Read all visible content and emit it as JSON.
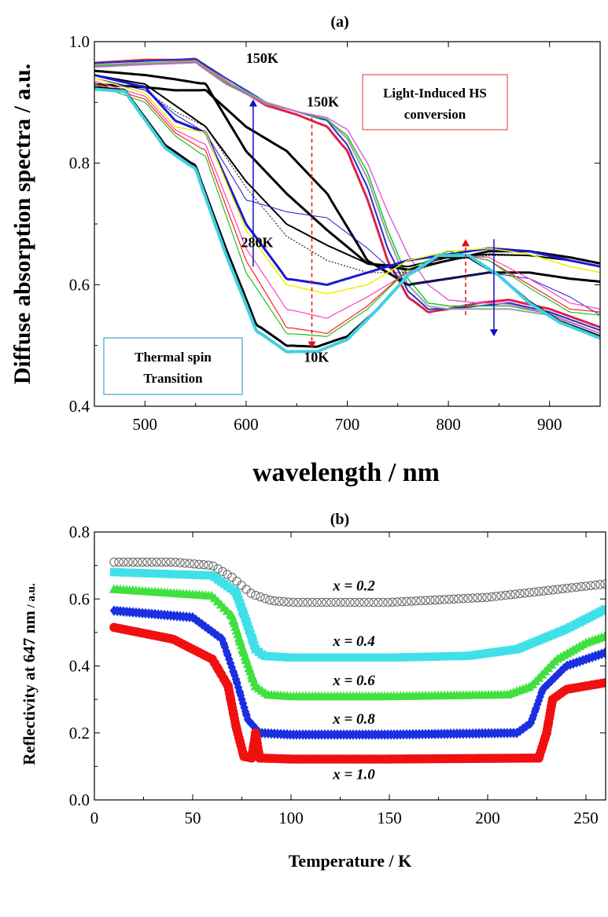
{
  "chart_data": [
    {
      "panel": "(a)",
      "type": "line",
      "xlabel": "wavelength   / nm",
      "ylabel": "Diffuse absorption spectra / a.u.",
      "xlim": [
        450,
        950
      ],
      "ylim": [
        0.4,
        1.0
      ],
      "xticks": [
        500,
        600,
        700,
        800,
        900
      ],
      "yticks": [
        0.4,
        0.6,
        0.8,
        1.0
      ],
      "ytick_labels": [
        "0.4",
        "0.6",
        "0.8",
        "1.0"
      ],
      "annotations": [
        {
          "text": "150K",
          "x": 600,
          "y": 0.965
        },
        {
          "text": "150K",
          "x": 660,
          "y": 0.893
        },
        {
          "text": "280K",
          "x": 595,
          "y": 0.662
        },
        {
          "text": "10K",
          "x": 657,
          "y": 0.473
        }
      ],
      "boxes": [
        {
          "lines": [
            "Light-Induced HS",
            "conversion"
          ],
          "color": "#e03030"
        },
        {
          "lines": [
            "Thermal spin",
            "Transition"
          ],
          "color": "#2090c0"
        }
      ],
      "arrows": [
        {
          "x": 607,
          "y_from": 0.63,
          "y_to": 0.905,
          "color": "#1010c0",
          "dashed": false
        },
        {
          "x": 665,
          "y_from": 0.875,
          "y_to": 0.495,
          "color": "#e01010",
          "dashed": true
        },
        {
          "x": 817,
          "y_from": 0.55,
          "y_to": 0.675,
          "color": "#e01010",
          "dashed": true
        },
        {
          "x": 845,
          "y_from": 0.675,
          "y_to": 0.515,
          "color": "#1010c0",
          "dashed": false
        }
      ],
      "series": [
        {
          "color": "#e0204a",
          "width": 3,
          "x": [
            450,
            500,
            550,
            580,
            620,
            650,
            680,
            700,
            720,
            740,
            760,
            780,
            800,
            830,
            860,
            900,
            950
          ],
          "y": [
            0.965,
            0.97,
            0.97,
            0.935,
            0.895,
            0.88,
            0.86,
            0.82,
            0.74,
            0.64,
            0.58,
            0.555,
            0.56,
            0.57,
            0.575,
            0.56,
            0.53
          ]
        },
        {
          "color": "#2030c8",
          "width": 2,
          "x": [
            450,
            500,
            550,
            580,
            620,
            650,
            680,
            700,
            720,
            740,
            760,
            780,
            800,
            830,
            860,
            900,
            950
          ],
          "y": [
            0.965,
            0.968,
            0.972,
            0.94,
            0.9,
            0.885,
            0.87,
            0.83,
            0.76,
            0.66,
            0.59,
            0.56,
            0.56,
            0.565,
            0.57,
            0.555,
            0.525
          ]
        },
        {
          "color": "#a0a0a0",
          "width": 2,
          "x": [
            450,
            500,
            550,
            580,
            620,
            650,
            680,
            700,
            720,
            740,
            760,
            780,
            800,
            830,
            860,
            900,
            950
          ],
          "y": [
            0.962,
            0.965,
            0.968,
            0.935,
            0.9,
            0.885,
            0.872,
            0.84,
            0.775,
            0.68,
            0.6,
            0.565,
            0.56,
            0.56,
            0.56,
            0.55,
            0.52
          ]
        },
        {
          "color": "#20c030",
          "width": 1.5,
          "x": [
            450,
            500,
            550,
            580,
            620,
            650,
            680,
            700,
            720,
            740,
            760,
            780,
            800,
            830,
            860,
            900,
            950
          ],
          "y": [
            0.96,
            0.963,
            0.966,
            0.932,
            0.898,
            0.885,
            0.872,
            0.845,
            0.785,
            0.69,
            0.61,
            0.57,
            0.565,
            0.565,
            0.565,
            0.552,
            0.52
          ]
        },
        {
          "color": "#e060e0",
          "width": 1.5,
          "x": [
            450,
            500,
            550,
            580,
            620,
            650,
            680,
            700,
            720,
            740,
            760,
            780,
            800,
            830,
            860,
            900,
            950
          ],
          "y": [
            0.958,
            0.962,
            0.965,
            0.93,
            0.897,
            0.885,
            0.875,
            0.855,
            0.8,
            0.72,
            0.65,
            0.6,
            0.575,
            0.57,
            0.568,
            0.552,
            0.52
          ]
        },
        {
          "color": "#000000",
          "width": 3,
          "x": [
            450,
            500,
            530,
            560,
            600,
            640,
            680,
            720,
            760,
            800,
            840,
            880,
            920,
            950
          ],
          "y": [
            0.93,
            0.925,
            0.92,
            0.92,
            0.86,
            0.82,
            0.75,
            0.64,
            0.6,
            0.61,
            0.62,
            0.62,
            0.61,
            0.605
          ]
        },
        {
          "color": "#000000",
          "width": 3,
          "x": [
            450,
            500,
            530,
            560,
            600,
            640,
            680,
            720,
            760,
            800,
            840,
            880,
            920,
            950
          ],
          "y": [
            0.952,
            0.945,
            0.938,
            0.93,
            0.82,
            0.75,
            0.69,
            0.635,
            0.625,
            0.64,
            0.655,
            0.655,
            0.645,
            0.635
          ]
        },
        {
          "color": "#000000",
          "width": 2,
          "x": [
            450,
            500,
            530,
            560,
            600,
            640,
            680,
            720,
            760,
            800,
            840,
            880,
            920,
            950
          ],
          "y": [
            0.945,
            0.93,
            0.895,
            0.86,
            0.77,
            0.7,
            0.665,
            0.635,
            0.63,
            0.645,
            0.65,
            0.648,
            0.64,
            0.63
          ]
        },
        {
          "color": "#000000",
          "width": 1,
          "dashed": true,
          "x": [
            450,
            500,
            530,
            560,
            600,
            640,
            680,
            720,
            760,
            800,
            840,
            880,
            920,
            950
          ],
          "y": [
            0.94,
            0.92,
            0.885,
            0.86,
            0.76,
            0.68,
            0.64,
            0.62,
            0.62,
            0.64,
            0.648,
            0.648,
            0.64,
            0.63
          ]
        },
        {
          "color": "#1a1ad0",
          "width": 1,
          "x": [
            450,
            500,
            530,
            560,
            600,
            640,
            680,
            720,
            760,
            800,
            840,
            880,
            920,
            950
          ],
          "y": [
            0.94,
            0.92,
            0.88,
            0.85,
            0.74,
            0.72,
            0.71,
            0.66,
            0.6,
            0.61,
            0.62,
            0.61,
            0.58,
            0.55
          ]
        },
        {
          "color": "#1a1ad0",
          "width": 3,
          "x": [
            450,
            500,
            530,
            560,
            600,
            640,
            680,
            720,
            760,
            800,
            840,
            880,
            920,
            950
          ],
          "y": [
            0.945,
            0.925,
            0.87,
            0.85,
            0.7,
            0.61,
            0.6,
            0.62,
            0.64,
            0.65,
            0.66,
            0.655,
            0.64,
            0.63
          ]
        },
        {
          "color": "#f0f000",
          "width": 1.5,
          "x": [
            450,
            500,
            530,
            560,
            600,
            640,
            680,
            720,
            760,
            800,
            840,
            880,
            920,
            950
          ],
          "y": [
            0.94,
            0.915,
            0.86,
            0.85,
            0.69,
            0.6,
            0.585,
            0.6,
            0.64,
            0.655,
            0.66,
            0.65,
            0.63,
            0.62
          ]
        },
        {
          "color": "#ff40c0",
          "width": 1.2,
          "x": [
            450,
            500,
            530,
            560,
            600,
            640,
            680,
            720,
            760,
            800,
            840,
            880,
            920,
            950
          ],
          "y": [
            0.935,
            0.91,
            0.855,
            0.83,
            0.66,
            0.56,
            0.545,
            0.58,
            0.62,
            0.65,
            0.645,
            0.61,
            0.57,
            0.56
          ]
        },
        {
          "color": "#ff2020",
          "width": 1.2,
          "x": [
            450,
            500,
            530,
            560,
            600,
            640,
            680,
            720,
            760,
            800,
            840,
            880,
            920,
            950
          ],
          "y": [
            0.932,
            0.905,
            0.85,
            0.82,
            0.64,
            0.53,
            0.52,
            0.565,
            0.625,
            0.655,
            0.64,
            0.6,
            0.56,
            0.555
          ]
        },
        {
          "color": "#20c020",
          "width": 1.2,
          "x": [
            450,
            500,
            530,
            560,
            600,
            640,
            680,
            720,
            760,
            800,
            840,
            880,
            920,
            950
          ],
          "y": [
            0.93,
            0.9,
            0.845,
            0.81,
            0.62,
            0.52,
            0.515,
            0.56,
            0.625,
            0.655,
            0.64,
            0.595,
            0.555,
            0.55
          ]
        },
        {
          "color": "#000000",
          "width": 3,
          "x": [
            450,
            480,
            520,
            550,
            580,
            610,
            640,
            670,
            700,
            730,
            760,
            790,
            820,
            850,
            880,
            910,
            950
          ],
          "y": [
            0.925,
            0.92,
            0.83,
            0.795,
            0.66,
            0.535,
            0.5,
            0.498,
            0.515,
            0.56,
            0.615,
            0.645,
            0.645,
            0.615,
            0.572,
            0.54,
            0.515
          ]
        },
        {
          "color": "#40d0e0",
          "width": 4,
          "x": [
            450,
            480,
            520,
            550,
            580,
            610,
            640,
            670,
            700,
            730,
            760,
            790,
            820,
            850,
            880,
            910,
            950
          ],
          "y": [
            0.922,
            0.918,
            0.825,
            0.79,
            0.65,
            0.525,
            0.49,
            0.49,
            0.51,
            0.56,
            0.615,
            0.648,
            0.648,
            0.615,
            0.57,
            0.538,
            0.512
          ]
        }
      ]
    },
    {
      "panel": "(b)",
      "type": "scatter",
      "xlabel": "Temperature / K",
      "ylabel": "Reflectivity at 647 nm",
      "ylabel_unit": " / a.u.",
      "xlim": [
        0,
        260
      ],
      "ylim": [
        0.0,
        0.8
      ],
      "xticks": [
        0,
        50,
        100,
        150,
        200,
        250
      ],
      "yticks": [
        0.0,
        0.2,
        0.4,
        0.6,
        0.8
      ],
      "ytick_labels": [
        "0.0",
        "0.2",
        "0.4",
        "0.6",
        "0.8"
      ],
      "series": [
        {
          "name": "x = 0.2",
          "color": "#606060",
          "marker": "circle-open",
          "label_pos": [
            132,
            0.625
          ],
          "x": [
            10,
            40,
            60,
            70,
            80,
            90,
            100,
            150,
            200,
            230,
            260
          ],
          "y": [
            0.71,
            0.71,
            0.7,
            0.665,
            0.615,
            0.595,
            0.59,
            0.59,
            0.605,
            0.625,
            0.645
          ]
        },
        {
          "name": "x = 0.4",
          "color": "#40e0e8",
          "marker": "square",
          "label_pos": [
            132,
            0.46
          ],
          "x": [
            10,
            60,
            72,
            78,
            82,
            86,
            100,
            150,
            190,
            215,
            240,
            260
          ],
          "y": [
            0.68,
            0.67,
            0.62,
            0.52,
            0.45,
            0.43,
            0.425,
            0.425,
            0.43,
            0.45,
            0.51,
            0.57
          ]
        },
        {
          "name": "x = 0.6",
          "color": "#40e040",
          "marker": "triangle",
          "label_pos": [
            132,
            0.343
          ],
          "x": [
            10,
            60,
            70,
            76,
            82,
            88,
            100,
            150,
            210,
            222,
            235,
            250,
            260
          ],
          "y": [
            0.63,
            0.61,
            0.55,
            0.44,
            0.34,
            0.315,
            0.31,
            0.31,
            0.315,
            0.34,
            0.42,
            0.47,
            0.49
          ]
        },
        {
          "name": "x = 0.8",
          "color": "#1a30e0",
          "marker": "diamond",
          "label_pos": [
            132,
            0.228
          ],
          "x": [
            10,
            50,
            65,
            72,
            78,
            84,
            100,
            150,
            215,
            222,
            228,
            240,
            260
          ],
          "y": [
            0.565,
            0.545,
            0.48,
            0.36,
            0.24,
            0.2,
            0.195,
            0.195,
            0.2,
            0.23,
            0.33,
            0.4,
            0.44
          ]
        },
        {
          "name": "x = 1.0",
          "color": "#f01010",
          "marker": "circle",
          "label_pos": [
            132,
            0.062
          ],
          "x": [
            10,
            40,
            60,
            68,
            72,
            76,
            80,
            82,
            84,
            100,
            150,
            226,
            230,
            233,
            240,
            260
          ],
          "y": [
            0.515,
            0.48,
            0.42,
            0.34,
            0.22,
            0.13,
            0.125,
            0.2,
            0.125,
            0.122,
            0.122,
            0.125,
            0.2,
            0.3,
            0.33,
            0.35
          ]
        }
      ]
    }
  ]
}
